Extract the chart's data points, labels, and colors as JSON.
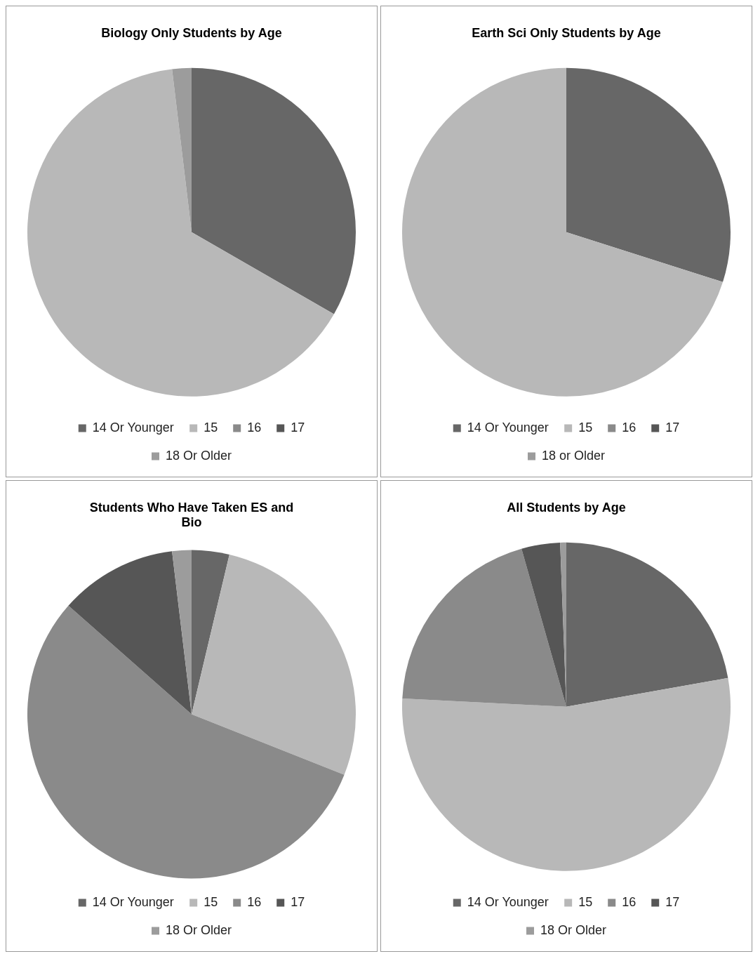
{
  "chart_data": [
    {
      "type": "pie",
      "title": "Biology Only Students by Age",
      "categories": [
        "14 Or Younger",
        "15",
        "16",
        "17",
        "18 Or Older"
      ],
      "values": [
        33.3,
        64.8,
        0,
        0,
        1.9
      ],
      "colors": [
        "#676767",
        "#b8b8b8",
        "#8a8a8a",
        "#565656",
        "#9c9c9c"
      ],
      "legend": "bottom"
    },
    {
      "type": "pie",
      "title": "Earth Sci Only Students by Age",
      "categories": [
        "14 Or Younger",
        "15",
        "16",
        "17",
        "18 or Older"
      ],
      "values": [
        29.9,
        70.1,
        0,
        0,
        0
      ],
      "colors": [
        "#676767",
        "#b8b8b8",
        "#8a8a8a",
        "#565656",
        "#9c9c9c"
      ],
      "legend": "bottom"
    },
    {
      "type": "pie",
      "title": "Students Who Have Taken ES and Bio",
      "categories": [
        "14 Or Younger",
        "15",
        "16",
        "17",
        "18 Or Older"
      ],
      "values": [
        3.7,
        27.3,
        55.5,
        11.6,
        1.9
      ],
      "colors": [
        "#676767",
        "#b8b8b8",
        "#8a8a8a",
        "#565656",
        "#9c9c9c"
      ],
      "legend": "bottom"
    },
    {
      "type": "pie",
      "title": "All Students by Age",
      "categories": [
        "14 Or Younger",
        "15",
        "16",
        "17",
        "18 Or Older"
      ],
      "values": [
        22.2,
        53.6,
        19.8,
        3.8,
        0.6
      ],
      "colors": [
        "#676767",
        "#b8b8b8",
        "#8a8a8a",
        "#565656",
        "#9c9c9c"
      ],
      "legend": "bottom"
    }
  ]
}
